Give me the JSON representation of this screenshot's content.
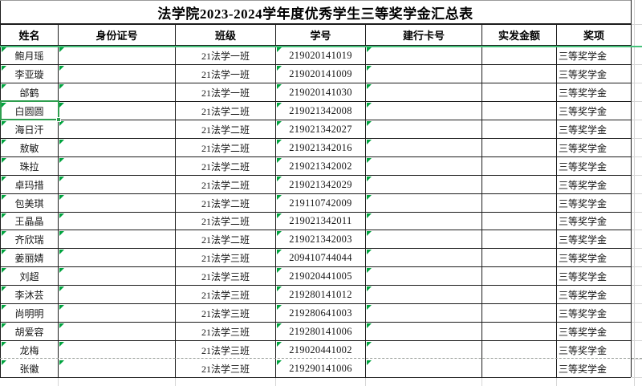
{
  "title": "法学院2023-2024学年度优秀学生三等奖学金汇总表",
  "columns": [
    "姓名",
    "身份证号",
    "班级",
    "学号",
    "建行卡号",
    "实发金额",
    "奖项"
  ],
  "rows": [
    {
      "name": "鲍月瑶",
      "id_number": "",
      "class": "21法学一班",
      "student_id": "219020141019",
      "bank_card": "",
      "amount": "",
      "award": "三等奖学金"
    },
    {
      "name": "李亚璇",
      "id_number": "",
      "class": "21法学一班",
      "student_id": "219020141009",
      "bank_card": "",
      "amount": "",
      "award": "三等奖学金"
    },
    {
      "name": "邰鹤",
      "id_number": "",
      "class": "21法学一班",
      "student_id": "219020141030",
      "bank_card": "",
      "amount": "",
      "award": "三等奖学金"
    },
    {
      "name": "白圆圆",
      "id_number": "",
      "class": "21法学二班",
      "student_id": "219021342008",
      "bank_card": "",
      "amount": "",
      "award": "三等奖学金"
    },
    {
      "name": "海日汗",
      "id_number": "",
      "class": "21法学二班",
      "student_id": "219021342027",
      "bank_card": "",
      "amount": "",
      "award": "三等奖学金"
    },
    {
      "name": "敖敏",
      "id_number": "",
      "class": "21法学二班",
      "student_id": "219021342016",
      "bank_card": "",
      "amount": "",
      "award": "三等奖学金"
    },
    {
      "name": "珠拉",
      "id_number": "",
      "class": "21法学二班",
      "student_id": "219021342002",
      "bank_card": "",
      "amount": "",
      "award": "三等奖学金"
    },
    {
      "name": "卓玛措",
      "id_number": "",
      "class": "21法学二班",
      "student_id": "219021342029",
      "bank_card": "",
      "amount": "",
      "award": "三等奖学金"
    },
    {
      "name": "包美琪",
      "id_number": "",
      "class": "21法学二班",
      "student_id": "219110742009",
      "bank_card": "",
      "amount": "",
      "award": "三等奖学金"
    },
    {
      "name": "王晶晶",
      "id_number": "",
      "class": "21法学二班",
      "student_id": "219021342011",
      "bank_card": "",
      "amount": "",
      "award": "三等奖学金"
    },
    {
      "name": "齐欣瑞",
      "id_number": "",
      "class": "21法学二班",
      "student_id": "219021342003",
      "bank_card": "",
      "amount": "",
      "award": "三等奖学金"
    },
    {
      "name": "姜丽婧",
      "id_number": "",
      "class": "21法学三班",
      "student_id": "209410744044",
      "bank_card": "",
      "amount": "",
      "award": "三等奖学金"
    },
    {
      "name": "刘超",
      "id_number": "",
      "class": "21法学三班",
      "student_id": "219020441005",
      "bank_card": "",
      "amount": "",
      "award": "三等奖学金"
    },
    {
      "name": "李沐芸",
      "id_number": "",
      "class": "21法学三班",
      "student_id": "219280141012",
      "bank_card": "",
      "amount": "",
      "award": "三等奖学金"
    },
    {
      "name": "尚明明",
      "id_number": "",
      "class": "21法学三班",
      "student_id": "219280641003",
      "bank_card": "",
      "amount": "",
      "award": "三等奖学金"
    },
    {
      "name": "胡爱容",
      "id_number": "",
      "class": "21法学三班",
      "student_id": "219280141006",
      "bank_card": "",
      "amount": "",
      "award": "三等奖学金"
    },
    {
      "name": "龙梅",
      "id_number": "",
      "class": "21法学三班",
      "student_id": "219020441002",
      "bank_card": "",
      "amount": "",
      "award": "三等奖学金"
    },
    {
      "name": "张徽",
      "id_number": "",
      "class": "21法学三班",
      "student_id": "219290141006",
      "bank_card": "",
      "amount": "",
      "award": "三等奖学金"
    }
  ],
  "selected_row_name": "白圆圆",
  "colors": {
    "freeze_line": "#46c17b",
    "flag_triangle": "#00a33e",
    "selection": "#2f9e4f",
    "table_border": "#1c1c1c",
    "faint_grid": "#d6d6d6"
  }
}
